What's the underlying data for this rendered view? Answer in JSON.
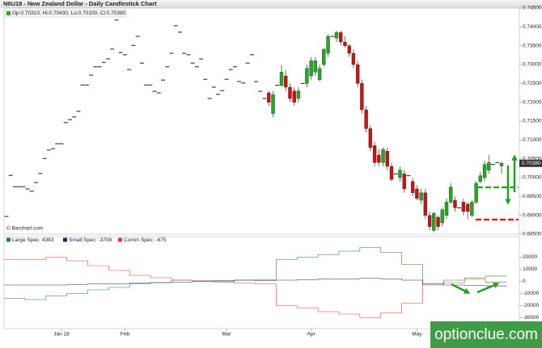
{
  "chart_data": [
    {
      "type": "candlestick",
      "title": "N6U18 - New Zealand Dollar - Daily Candlestick Chart",
      "ohlc_legend": "Op:0.70310, Hi:0.70430, Lo:0.70100, Cl:0.70380",
      "credit": "© Barchart.com",
      "watermark": "optionclue.com",
      "up_color": "#22aa22",
      "down_color": "#cc1111",
      "doji_color": "#000000",
      "ylim": [
        0.685,
        0.745
      ],
      "yticks": [
        {
          "value": 0.745,
          "label": "0.74500"
        },
        {
          "value": 0.74,
          "label": "0.74000"
        },
        {
          "value": 0.735,
          "label": "0.73500"
        },
        {
          "value": 0.73,
          "label": "0.73000"
        },
        {
          "value": 0.725,
          "label": "0.72500"
        },
        {
          "value": 0.72,
          "label": "0.72000"
        },
        {
          "value": 0.715,
          "label": "0.71500"
        },
        {
          "value": 0.71,
          "label": "0.71000"
        },
        {
          "value": 0.705,
          "label": "0.70500"
        },
        {
          "value": 0.7,
          "label": "0.70000"
        },
        {
          "value": 0.695,
          "label": "0.69500"
        },
        {
          "value": 0.69,
          "label": "0.69000"
        },
        {
          "value": 0.685,
          "label": "0.68500"
        }
      ],
      "last_price": {
        "value": 0.7038,
        "label": "0.70380"
      },
      "categories": [
        null,
        null,
        null,
        null,
        null,
        null,
        null,
        null,
        null,
        null,
        null,
        null,
        null,
        "Jan 18",
        null,
        null,
        null,
        null,
        null,
        null,
        null,
        null,
        null,
        null,
        null,
        null,
        null,
        null,
        "Feb",
        null,
        null,
        null,
        null,
        null,
        null,
        null,
        null,
        null,
        null,
        null,
        null,
        null,
        null,
        null,
        null,
        null,
        null,
        null,
        null,
        null,
        null,
        null,
        "Mar",
        null,
        null,
        null,
        null,
        null,
        null,
        null,
        null,
        null,
        null,
        null,
        null,
        null,
        null,
        null,
        null,
        null,
        null,
        null,
        "Apr",
        null,
        null,
        null,
        null,
        null,
        null,
        null,
        null,
        null,
        null,
        null,
        null,
        null,
        null,
        null,
        null,
        null,
        null,
        null,
        null,
        null,
        null,
        null,
        null,
        "May",
        null,
        null,
        null,
        null,
        null,
        null,
        null,
        null,
        null,
        null,
        null,
        null,
        null,
        null,
        null,
        null,
        null,
        null,
        null,
        null
      ],
      "ohlc": [
        [
          0.6897,
          0.6897,
          0.6897,
          0.6897
        ],
        [
          0.7006,
          0.7006,
          0.7006,
          0.7006
        ],
        [
          0.6976,
          0.6976,
          0.6976,
          0.6976
        ],
        [
          0.6976,
          0.6976,
          0.6976,
          0.6976
        ],
        [
          0.6976,
          0.6976,
          0.6976,
          0.6976
        ],
        [
          0.697,
          0.697,
          0.697,
          0.697
        ],
        [
          0.6964,
          0.6964,
          0.6964,
          0.6964
        ],
        [
          0.6987,
          0.6987,
          0.6987,
          0.6987
        ],
        [
          0.7011,
          0.7011,
          0.7011,
          0.7011
        ],
        [
          0.7051,
          0.7051,
          0.7051,
          0.7051
        ],
        [
          0.7073,
          0.7073,
          0.7073,
          0.7073
        ],
        [
          0.7077,
          0.7077,
          0.7077,
          0.7077
        ],
        [
          0.709,
          0.709,
          0.709,
          0.709
        ],
        [
          0.709,
          0.709,
          0.709,
          0.709
        ],
        [
          0.7146,
          0.7146,
          0.7146,
          0.7146
        ],
        [
          0.7154,
          0.7154,
          0.7154,
          0.7154
        ],
        [
          0.7161,
          0.7161,
          0.7161,
          0.7161
        ],
        [
          0.7176,
          0.7176,
          0.7176,
          0.7176
        ],
        [
          0.7246,
          0.7246,
          0.7246,
          0.7246
        ],
        [
          0.7246,
          0.7246,
          0.7246,
          0.7246
        ],
        [
          0.7272,
          0.7272,
          0.7272,
          0.7272
        ],
        [
          0.7294,
          0.7294,
          0.7294,
          0.7294
        ],
        [
          0.7294,
          0.7294,
          0.7294,
          0.7294
        ],
        [
          0.7306,
          0.7306,
          0.7306,
          0.7306
        ],
        [
          0.7315,
          0.7315,
          0.7315,
          0.7315
        ],
        [
          0.7341,
          0.7341,
          0.7341,
          0.7341
        ],
        [
          0.7418,
          0.7418,
          0.7418,
          0.7418
        ],
        [
          0.7332,
          0.7332,
          0.7332,
          0.7332
        ],
        [
          0.7326,
          0.7326,
          0.7326,
          0.7326
        ],
        [
          0.7287,
          0.7287,
          0.7287,
          0.7287
        ],
        [
          0.7351,
          0.7351,
          0.7351,
          0.7351
        ],
        [
          0.7375,
          0.7375,
          0.7375,
          0.7375
        ],
        [
          0.7304,
          0.7304,
          0.7304,
          0.7304
        ],
        [
          0.7246,
          0.7246,
          0.7246,
          0.7246
        ],
        [
          0.7246,
          0.7246,
          0.7246,
          0.7246
        ],
        [
          0.7229,
          0.7229,
          0.7229,
          0.7229
        ],
        [
          0.7225,
          0.7225,
          0.7225,
          0.7225
        ],
        [
          0.7259,
          0.7259,
          0.7259,
          0.7259
        ],
        [
          0.7294,
          0.7294,
          0.7294,
          0.7294
        ],
        [
          0.733,
          0.733,
          0.733,
          0.733
        ],
        [
          0.7403,
          0.7403,
          0.7403,
          0.7403
        ],
        [
          0.7386,
          0.7386,
          0.7386,
          0.7386
        ],
        [
          0.733,
          0.733,
          0.733,
          0.733
        ],
        [
          0.7326,
          0.7326,
          0.7326,
          0.7326
        ],
        [
          0.7304,
          0.7304,
          0.7304,
          0.7304
        ],
        [
          0.7294,
          0.7294,
          0.7294,
          0.7294
        ],
        [
          0.7315,
          0.7315,
          0.7315,
          0.7315
        ],
        [
          0.7261,
          0.7261,
          0.7261,
          0.7261
        ],
        [
          0.721,
          0.721,
          0.721,
          0.721
        ],
        [
          0.724,
          0.724,
          0.724,
          0.724
        ],
        [
          0.7221,
          0.7221,
          0.7221,
          0.7221
        ],
        [
          0.7231,
          0.7231,
          0.7231,
          0.7231
        ],
        [
          0.7261,
          0.7261,
          0.7261,
          0.7261
        ],
        [
          0.7287,
          0.7287,
          0.7287,
          0.7287
        ],
        [
          0.7294,
          0.7294,
          0.7294,
          0.7294
        ],
        [
          0.7255,
          0.7255,
          0.7255,
          0.7255
        ],
        [
          0.7251,
          0.7251,
          0.7251,
          0.7251
        ],
        [
          0.7304,
          0.7304,
          0.7304,
          0.7304
        ],
        [
          0.7326,
          0.7326,
          0.7326,
          0.7326
        ],
        [
          0.7255,
          0.7255,
          0.7255,
          0.7255
        ],
        [
          0.7229,
          0.7229,
          0.7229,
          0.7229
        ],
        [
          0.721,
          0.721,
          0.721,
          0.721
        ],
        [
          0.7225,
          0.723,
          0.719,
          0.72
        ],
        [
          0.717,
          0.723,
          0.716,
          0.722
        ],
        [
          0.7245,
          0.7245,
          0.7245,
          0.7245
        ],
        [
          0.7245,
          0.73,
          0.724,
          0.728
        ],
        [
          0.727,
          0.7285,
          0.723,
          0.724
        ],
        [
          0.724,
          0.725,
          0.72,
          0.721
        ],
        [
          0.723,
          0.724,
          0.719,
          0.72
        ],
        [
          0.721,
          0.724,
          0.72,
          0.723
        ],
        [
          0.725,
          0.725,
          0.725,
          0.725
        ],
        [
          0.725,
          0.73,
          0.724,
          0.729
        ],
        [
          0.727,
          0.732,
          0.726,
          0.731
        ],
        [
          0.728,
          0.732,
          0.727,
          0.731
        ],
        [
          0.726,
          0.73,
          0.7255,
          0.729
        ],
        [
          0.73,
          0.7345,
          0.7295,
          0.734
        ],
        [
          0.733,
          0.738,
          0.732,
          0.7375
        ],
        [
          0.7375,
          0.7375,
          0.7375,
          0.7375
        ],
        [
          0.737,
          0.739,
          0.736,
          0.7385
        ],
        [
          0.7385,
          0.739,
          0.735,
          0.736
        ],
        [
          0.736,
          0.7375,
          0.7345,
          0.735
        ],
        [
          0.735,
          0.7355,
          0.732,
          0.733
        ],
        [
          0.733,
          0.734,
          0.729,
          0.73
        ],
        [
          0.73,
          0.731,
          0.724,
          0.725
        ],
        [
          0.725,
          0.726,
          0.717,
          0.718
        ],
        [
          0.718,
          0.719,
          0.712,
          0.713
        ],
        [
          0.713,
          0.714,
          0.707,
          0.708
        ],
        [
          0.7085,
          0.7095,
          0.703,
          0.704
        ],
        [
          0.706,
          0.7075,
          0.703,
          0.704
        ],
        [
          0.704,
          0.708,
          0.703,
          0.7075
        ],
        [
          0.707,
          0.708,
          0.702,
          0.703
        ],
        [
          0.703,
          0.704,
          0.699,
          0.6995
        ],
        [
          0.701,
          0.701,
          0.701,
          0.701
        ],
        [
          0.7,
          0.703,
          0.699,
          0.702
        ],
        [
          0.701,
          0.702,
          0.696,
          0.697
        ],
        [
          0.7005,
          0.7005,
          0.7005,
          0.7005
        ],
        [
          0.699,
          0.7,
          0.695,
          0.696
        ],
        [
          0.697,
          0.698,
          0.694,
          0.6945
        ],
        [
          0.694,
          0.697,
          0.693,
          0.696
        ],
        [
          0.696,
          0.697,
          0.689,
          0.69
        ],
        [
          0.69,
          0.691,
          0.686,
          0.687
        ],
        [
          0.686,
          0.691,
          0.6855,
          0.6905
        ],
        [
          0.6895,
          0.69,
          0.686,
          0.687
        ],
        [
          0.688,
          0.692,
          0.687,
          0.6915
        ],
        [
          0.69,
          0.6945,
          0.689,
          0.6935
        ],
        [
          0.6935,
          0.6985,
          0.693,
          0.6975
        ],
        [
          0.694,
          0.695,
          0.691,
          0.692
        ],
        [
          0.692,
          0.692,
          0.692,
          0.692
        ],
        [
          0.6935,
          0.6945,
          0.69,
          0.691
        ],
        [
          0.693,
          0.6935,
          0.689,
          0.691
        ],
        [
          0.69,
          0.694,
          0.6895,
          0.6935
        ],
        [
          0.6935,
          0.699,
          0.693,
          0.6985
        ],
        [
          0.699,
          0.7015,
          0.6985,
          0.7005
        ],
        [
          0.7,
          0.7045,
          0.699,
          0.7035
        ],
        [
          0.702,
          0.706,
          0.701,
          0.704
        ],
        [
          0.7035,
          0.7035,
          0.7035,
          0.7035
        ],
        [
          0.704,
          0.704,
          0.704,
          0.704
        ],
        [
          0.7031,
          0.7043,
          0.701,
          0.7038
        ]
      ]
    },
    {
      "type": "step",
      "ylim": [
        -39000,
        37000
      ],
      "yticks": [
        20000,
        10000,
        0,
        -10000,
        -20000,
        -30000
      ],
      "categories": [
        null,
        null,
        null,
        null,
        null,
        null,
        null,
        null,
        null,
        null,
        null,
        null,
        null,
        null,
        null,
        null,
        null,
        null,
        null,
        null,
        null,
        null,
        null,
        null
      ],
      "series": [
        {
          "name": "Large Spec: 4383",
          "color": "#2e7d32",
          "values": [
            -14000,
            -15000,
            -12000,
            -10000,
            -7000,
            -5000,
            -2000,
            -1000,
            1000,
            500,
            0,
            1000,
            1500,
            18000,
            20000,
            22000,
            25000,
            28000,
            24000,
            14000,
            -3000,
            1000,
            3000,
            4383
          ]
        },
        {
          "name": "Small Spec: -3708",
          "color": "#1a237e",
          "values": [
            -3000,
            -3000,
            -3000,
            -2500,
            -2000,
            -2000,
            -1500,
            -1000,
            -500,
            0,
            500,
            1000,
            500,
            1000,
            1500,
            2000,
            2000,
            2500,
            2000,
            1000,
            -2000,
            -3000,
            -3500,
            -3708
          ]
        },
        {
          "name": "Comm Spec: -675",
          "color": "#e53935",
          "values": [
            18000,
            18000,
            20000,
            17000,
            13000,
            9000,
            5000,
            3000,
            1000,
            0,
            -500,
            -1500,
            -2000,
            -20000,
            -22000,
            -25000,
            -27000,
            -30000,
            -26000,
            -18000,
            -2000,
            -1000,
            2000,
            -675
          ]
        }
      ]
    }
  ]
}
